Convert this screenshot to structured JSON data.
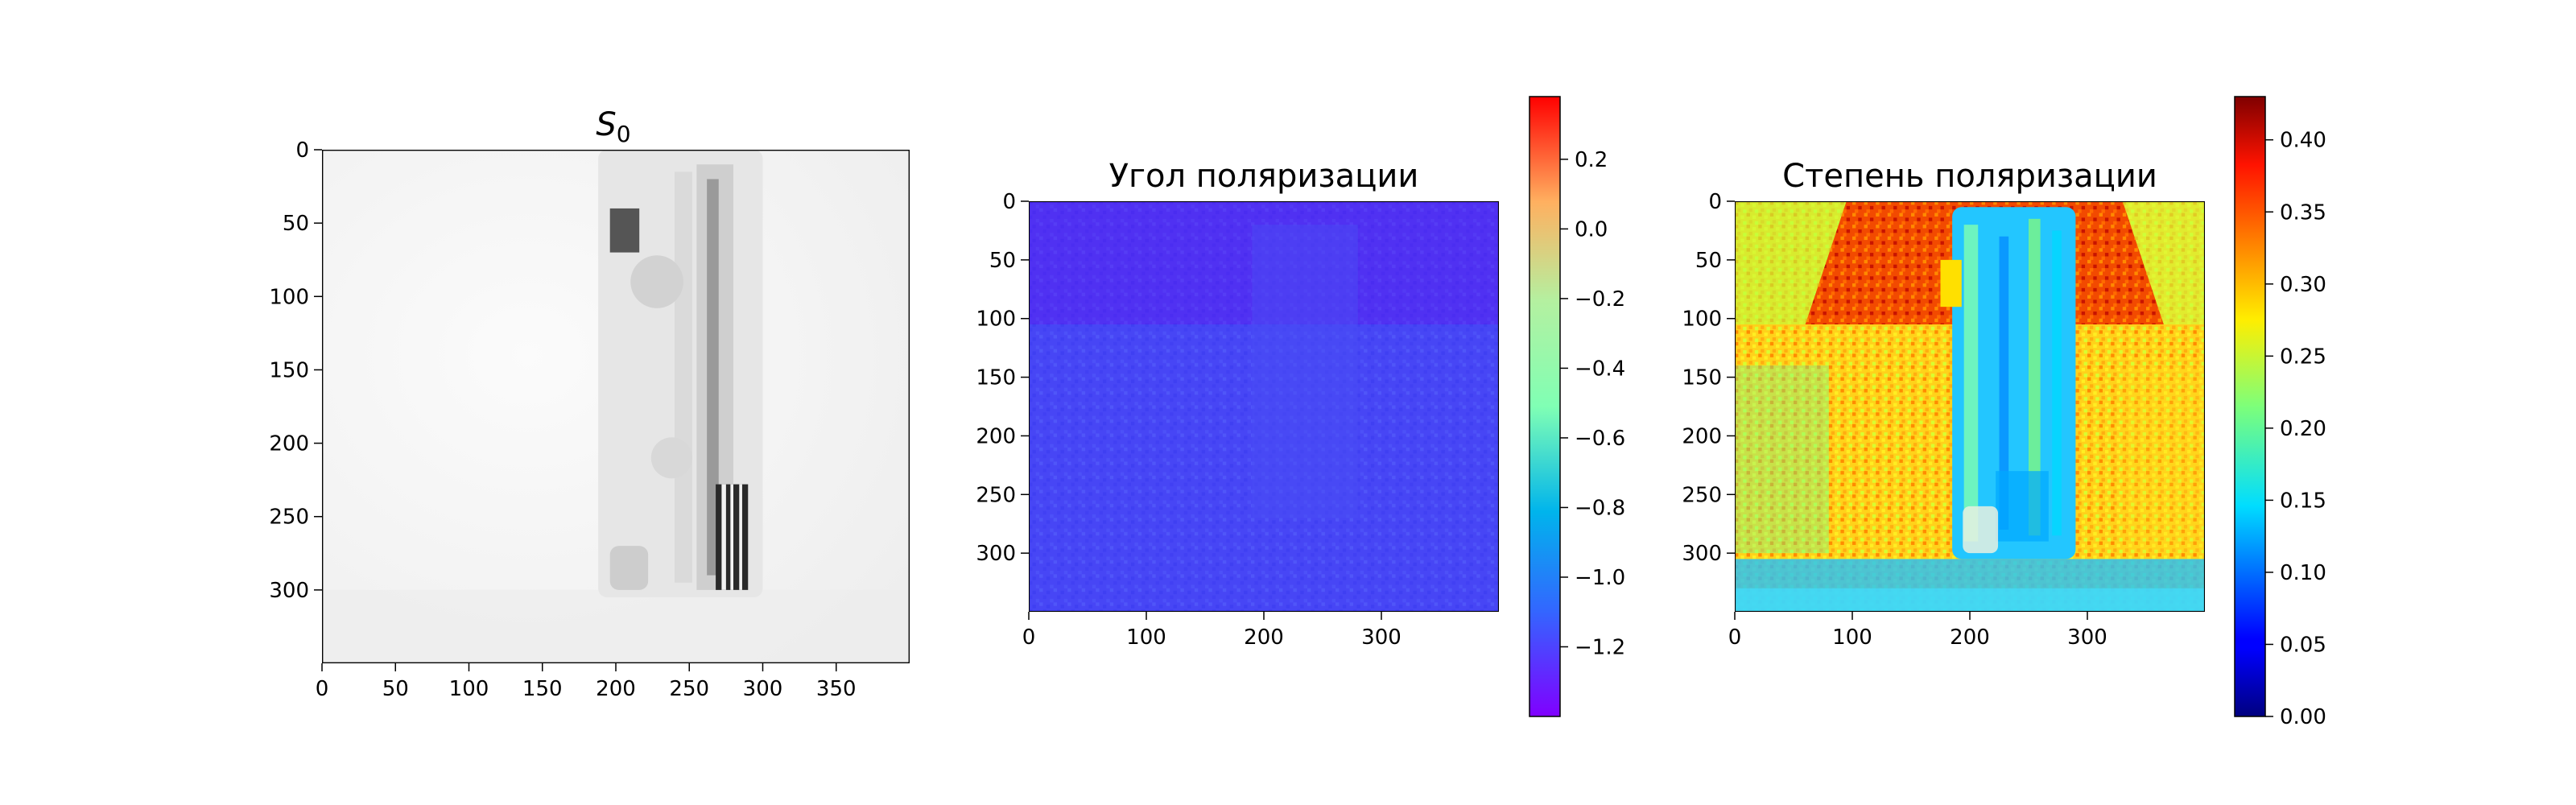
{
  "chart_data": [
    {
      "type": "heatmap",
      "title": "S0",
      "colormap": "gray",
      "xticks": [
        "0",
        "50",
        "100",
        "150",
        "200",
        "250",
        "300",
        "350"
      ],
      "yticks": [
        "0",
        "50",
        "100",
        "150",
        "200",
        "250",
        "300"
      ],
      "xlim": [
        0,
        400
      ],
      "ylim": [
        350,
        0
      ],
      "colorbar": false
    },
    {
      "type": "heatmap",
      "title": "Угол поляризации",
      "colormap": "rainbow",
      "xticks": [
        "0",
        "100",
        "200",
        "300"
      ],
      "yticks": [
        "0",
        "50",
        "100",
        "150",
        "200",
        "250",
        "300"
      ],
      "xlim": [
        0,
        400
      ],
      "ylim": [
        350,
        0
      ],
      "colorbar": true,
      "colorbar_ticks": [
        "0.2",
        "0.0",
        "−0.2",
        "−0.4",
        "−0.6",
        "−0.8",
        "−1.0",
        "−1.2"
      ],
      "colorbar_range": [
        -1.4,
        0.38
      ],
      "typical_value": -1.28
    },
    {
      "type": "heatmap",
      "title": "Степень поляризации",
      "colormap": "jet",
      "xticks": [
        "0",
        "100",
        "200",
        "300"
      ],
      "yticks": [
        "0",
        "50",
        "100",
        "150",
        "200",
        "250",
        "300"
      ],
      "xlim": [
        0,
        400
      ],
      "ylim": [
        350,
        0
      ],
      "colorbar": true,
      "colorbar_ticks": [
        "0.40",
        "0.35",
        "0.30",
        "0.25",
        "0.20",
        "0.15",
        "0.10",
        "0.05",
        "0.00"
      ],
      "colorbar_range": [
        0.0,
        0.43
      ]
    }
  ]
}
